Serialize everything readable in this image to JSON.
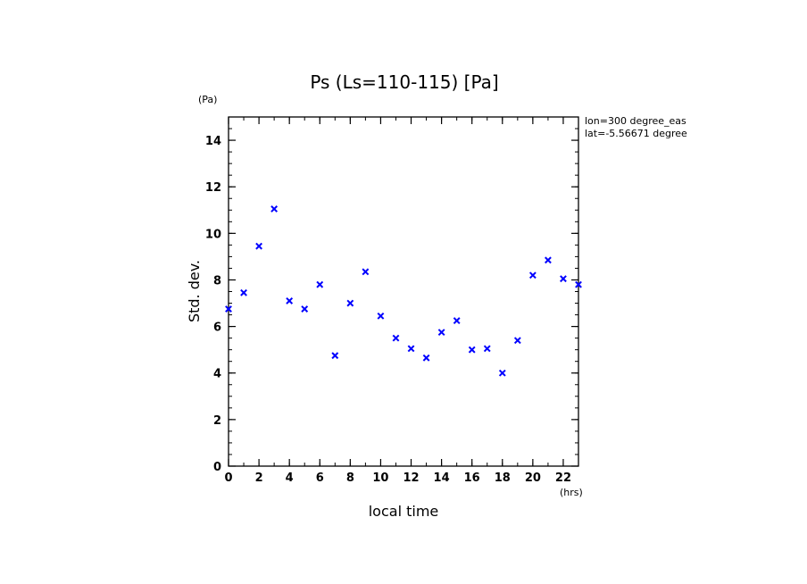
{
  "chart_data": {
    "type": "scatter",
    "title": "Ps (Ls=110-115) [Pa]",
    "xlabel": "local time",
    "ylabel": "Std. dev.",
    "x_unit": "(hrs)",
    "y_unit": "(Pa)",
    "annotations": [
      "lon=300 degree_eas",
      "lat=-5.56671 degree"
    ],
    "xlim": [
      0,
      23
    ],
    "ylim": [
      0,
      15
    ],
    "x_ticks": [
      0,
      2,
      4,
      6,
      8,
      10,
      12,
      14,
      16,
      18,
      20,
      22
    ],
    "y_ticks": [
      0,
      2,
      4,
      6,
      8,
      10,
      12,
      14
    ],
    "marker": "x",
    "marker_color": "#0000ff",
    "grid": false,
    "legend": "none",
    "series": [
      {
        "x": [
          0,
          1,
          2,
          3,
          4,
          5,
          6,
          7,
          8,
          9,
          10,
          11,
          12,
          13,
          14,
          15,
          16,
          17,
          18,
          19,
          20,
          21,
          22,
          23
        ],
        "values": [
          6.75,
          7.45,
          9.45,
          11.05,
          7.1,
          6.75,
          7.8,
          4.75,
          7.0,
          8.35,
          6.45,
          5.5,
          5.05,
          4.65,
          5.75,
          6.25,
          5.0,
          5.05,
          4.0,
          5.4,
          8.2,
          8.85,
          8.05,
          7.8
        ]
      }
    ]
  }
}
